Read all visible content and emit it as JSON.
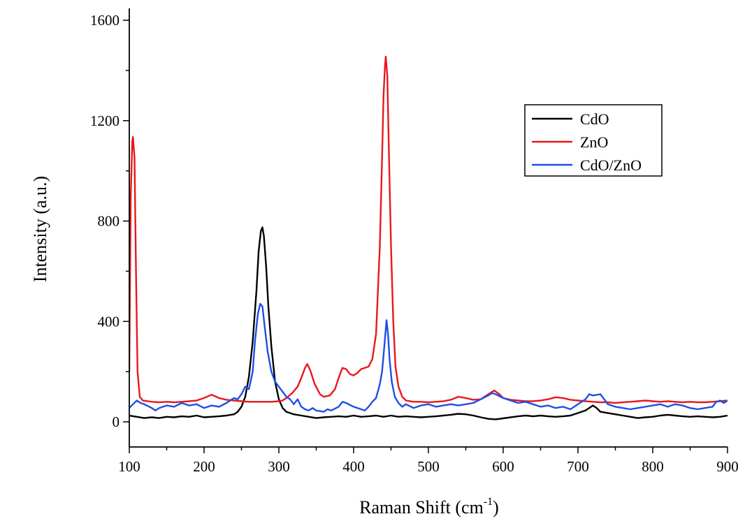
{
  "chart_data": {
    "type": "line",
    "title": "",
    "xlabel": "Raman Shift (cm",
    "xlabel_sup": "-1",
    "xlabel_suffix": ")",
    "ylabel": "Intensity (a.u.)",
    "xlim": [
      100,
      900
    ],
    "ylim": [
      -100,
      1650
    ],
    "xticks": [
      100,
      200,
      300,
      400,
      500,
      600,
      700,
      800,
      900
    ],
    "yticks": [
      0,
      400,
      800,
      1200,
      1600
    ],
    "grid": false,
    "legend_position": "top-right",
    "series": [
      {
        "name": "CdO",
        "color": "#000000",
        "points": [
          [
            100,
            25
          ],
          [
            110,
            20
          ],
          [
            120,
            15
          ],
          [
            130,
            18
          ],
          [
            140,
            15
          ],
          [
            150,
            20
          ],
          [
            160,
            18
          ],
          [
            170,
            22
          ],
          [
            180,
            20
          ],
          [
            190,
            25
          ],
          [
            200,
            18
          ],
          [
            210,
            20
          ],
          [
            220,
            22
          ],
          [
            230,
            25
          ],
          [
            240,
            30
          ],
          [
            245,
            40
          ],
          [
            250,
            60
          ],
          [
            255,
            100
          ],
          [
            260,
            180
          ],
          [
            265,
            320
          ],
          [
            270,
            520
          ],
          [
            273,
            680
          ],
          [
            276,
            760
          ],
          [
            278,
            775
          ],
          [
            280,
            740
          ],
          [
            283,
            620
          ],
          [
            286,
            460
          ],
          [
            290,
            300
          ],
          [
            295,
            160
          ],
          [
            300,
            90
          ],
          [
            305,
            55
          ],
          [
            310,
            40
          ],
          [
            320,
            30
          ],
          [
            330,
            25
          ],
          [
            340,
            20
          ],
          [
            350,
            15
          ],
          [
            360,
            18
          ],
          [
            370,
            20
          ],
          [
            380,
            22
          ],
          [
            390,
            20
          ],
          [
            400,
            25
          ],
          [
            410,
            20
          ],
          [
            420,
            22
          ],
          [
            430,
            25
          ],
          [
            440,
            20
          ],
          [
            450,
            25
          ],
          [
            460,
            20
          ],
          [
            470,
            22
          ],
          [
            480,
            20
          ],
          [
            490,
            18
          ],
          [
            500,
            20
          ],
          [
            510,
            22
          ],
          [
            520,
            25
          ],
          [
            530,
            28
          ],
          [
            540,
            32
          ],
          [
            550,
            30
          ],
          [
            560,
            25
          ],
          [
            570,
            18
          ],
          [
            580,
            12
          ],
          [
            590,
            10
          ],
          [
            600,
            14
          ],
          [
            610,
            18
          ],
          [
            620,
            22
          ],
          [
            630,
            25
          ],
          [
            640,
            22
          ],
          [
            650,
            25
          ],
          [
            660,
            22
          ],
          [
            670,
            20
          ],
          [
            680,
            22
          ],
          [
            690,
            25
          ],
          [
            700,
            35
          ],
          [
            710,
            45
          ],
          [
            715,
            55
          ],
          [
            720,
            65
          ],
          [
            725,
            55
          ],
          [
            730,
            40
          ],
          [
            740,
            35
          ],
          [
            750,
            30
          ],
          [
            760,
            25
          ],
          [
            770,
            20
          ],
          [
            780,
            15
          ],
          [
            790,
            18
          ],
          [
            800,
            20
          ],
          [
            810,
            25
          ],
          [
            820,
            28
          ],
          [
            830,
            25
          ],
          [
            840,
            22
          ],
          [
            850,
            20
          ],
          [
            860,
            22
          ],
          [
            870,
            20
          ],
          [
            880,
            18
          ],
          [
            890,
            20
          ],
          [
            900,
            25
          ]
        ]
      },
      {
        "name": "ZnO",
        "color": "#e8181c",
        "points": [
          [
            100,
            200
          ],
          [
            102,
            900
          ],
          [
            104,
            1120
          ],
          [
            105,
            1135
          ],
          [
            107,
            1050
          ],
          [
            109,
            600
          ],
          [
            111,
            200
          ],
          [
            114,
            100
          ],
          [
            118,
            85
          ],
          [
            130,
            80
          ],
          [
            140,
            78
          ],
          [
            150,
            80
          ],
          [
            160,
            78
          ],
          [
            170,
            80
          ],
          [
            180,
            82
          ],
          [
            190,
            85
          ],
          [
            200,
            95
          ],
          [
            210,
            108
          ],
          [
            220,
            95
          ],
          [
            230,
            88
          ],
          [
            240,
            85
          ],
          [
            250,
            82
          ],
          [
            260,
            80
          ],
          [
            270,
            80
          ],
          [
            280,
            80
          ],
          [
            290,
            80
          ],
          [
            300,
            82
          ],
          [
            305,
            85
          ],
          [
            310,
            95
          ],
          [
            318,
            115
          ],
          [
            325,
            140
          ],
          [
            330,
            175
          ],
          [
            335,
            215
          ],
          [
            338,
            230
          ],
          [
            342,
            205
          ],
          [
            348,
            150
          ],
          [
            355,
            110
          ],
          [
            360,
            100
          ],
          [
            368,
            105
          ],
          [
            375,
            130
          ],
          [
            380,
            175
          ],
          [
            385,
            215
          ],
          [
            390,
            210
          ],
          [
            395,
            190
          ],
          [
            400,
            185
          ],
          [
            405,
            195
          ],
          [
            410,
            210
          ],
          [
            415,
            215
          ],
          [
            420,
            220
          ],
          [
            425,
            250
          ],
          [
            430,
            350
          ],
          [
            435,
            700
          ],
          [
            438,
            1050
          ],
          [
            440,
            1300
          ],
          [
            442,
            1420
          ],
          [
            443,
            1455
          ],
          [
            445,
            1380
          ],
          [
            447,
            1100
          ],
          [
            450,
            700
          ],
          [
            453,
            400
          ],
          [
            456,
            220
          ],
          [
            460,
            140
          ],
          [
            465,
            100
          ],
          [
            470,
            85
          ],
          [
            480,
            80
          ],
          [
            490,
            80
          ],
          [
            500,
            78
          ],
          [
            510,
            80
          ],
          [
            520,
            82
          ],
          [
            530,
            88
          ],
          [
            540,
            100
          ],
          [
            550,
            95
          ],
          [
            560,
            88
          ],
          [
            570,
            90
          ],
          [
            580,
            110
          ],
          [
            588,
            125
          ],
          [
            595,
            110
          ],
          [
            600,
            95
          ],
          [
            610,
            88
          ],
          [
            620,
            85
          ],
          [
            630,
            82
          ],
          [
            640,
            82
          ],
          [
            650,
            85
          ],
          [
            660,
            90
          ],
          [
            670,
            98
          ],
          [
            680,
            95
          ],
          [
            690,
            88
          ],
          [
            700,
            85
          ],
          [
            710,
            82
          ],
          [
            720,
            80
          ],
          [
            730,
            78
          ],
          [
            740,
            78
          ],
          [
            750,
            75
          ],
          [
            760,
            78
          ],
          [
            770,
            80
          ],
          [
            780,
            82
          ],
          [
            790,
            85
          ],
          [
            800,
            82
          ],
          [
            810,
            80
          ],
          [
            820,
            82
          ],
          [
            830,
            80
          ],
          [
            840,
            78
          ],
          [
            850,
            80
          ],
          [
            860,
            78
          ],
          [
            870,
            78
          ],
          [
            880,
            80
          ],
          [
            890,
            82
          ],
          [
            900,
            85
          ]
        ]
      },
      {
        "name": "CdO/ZnO",
        "color": "#1f4ee6",
        "points": [
          [
            100,
            55
          ],
          [
            105,
            70
          ],
          [
            110,
            85
          ],
          [
            115,
            75
          ],
          [
            120,
            70
          ],
          [
            130,
            55
          ],
          [
            135,
            45
          ],
          [
            140,
            55
          ],
          [
            150,
            65
          ],
          [
            160,
            60
          ],
          [
            170,
            75
          ],
          [
            180,
            65
          ],
          [
            190,
            70
          ],
          [
            200,
            55
          ],
          [
            210,
            65
          ],
          [
            220,
            60
          ],
          [
            230,
            75
          ],
          [
            240,
            95
          ],
          [
            245,
            90
          ],
          [
            250,
            110
          ],
          [
            255,
            140
          ],
          [
            260,
            130
          ],
          [
            265,
            200
          ],
          [
            268,
            320
          ],
          [
            272,
            430
          ],
          [
            275,
            470
          ],
          [
            278,
            460
          ],
          [
            281,
            380
          ],
          [
            285,
            280
          ],
          [
            290,
            200
          ],
          [
            295,
            160
          ],
          [
            300,
            140
          ],
          [
            305,
            120
          ],
          [
            310,
            100
          ],
          [
            315,
            90
          ],
          [
            320,
            70
          ],
          [
            325,
            90
          ],
          [
            330,
            60
          ],
          [
            335,
            50
          ],
          [
            340,
            45
          ],
          [
            345,
            55
          ],
          [
            350,
            45
          ],
          [
            360,
            40
          ],
          [
            365,
            50
          ],
          [
            370,
            45
          ],
          [
            380,
            60
          ],
          [
            385,
            80
          ],
          [
            390,
            75
          ],
          [
            400,
            60
          ],
          [
            410,
            50
          ],
          [
            415,
            45
          ],
          [
            420,
            60
          ],
          [
            425,
            80
          ],
          [
            430,
            95
          ],
          [
            435,
            150
          ],
          [
            438,
            200
          ],
          [
            441,
            300
          ],
          [
            444,
            405
          ],
          [
            446,
            350
          ],
          [
            448,
            250
          ],
          [
            451,
            160
          ],
          [
            455,
            100
          ],
          [
            460,
            75
          ],
          [
            465,
            60
          ],
          [
            470,
            70
          ],
          [
            480,
            55
          ],
          [
            490,
            65
          ],
          [
            500,
            70
          ],
          [
            510,
            60
          ],
          [
            520,
            65
          ],
          [
            530,
            70
          ],
          [
            540,
            65
          ],
          [
            550,
            70
          ],
          [
            560,
            75
          ],
          [
            570,
            90
          ],
          [
            580,
            105
          ],
          [
            585,
            115
          ],
          [
            590,
            110
          ],
          [
            600,
            95
          ],
          [
            610,
            85
          ],
          [
            620,
            75
          ],
          [
            630,
            80
          ],
          [
            640,
            70
          ],
          [
            650,
            60
          ],
          [
            660,
            65
          ],
          [
            670,
            55
          ],
          [
            680,
            60
          ],
          [
            690,
            50
          ],
          [
            700,
            70
          ],
          [
            710,
            90
          ],
          [
            715,
            110
          ],
          [
            720,
            105
          ],
          [
            730,
            110
          ],
          [
            740,
            70
          ],
          [
            750,
            60
          ],
          [
            760,
            55
          ],
          [
            770,
            50
          ],
          [
            780,
            55
          ],
          [
            790,
            60
          ],
          [
            800,
            65
          ],
          [
            810,
            70
          ],
          [
            820,
            60
          ],
          [
            830,
            70
          ],
          [
            840,
            65
          ],
          [
            850,
            55
          ],
          [
            860,
            50
          ],
          [
            870,
            55
          ],
          [
            880,
            60
          ],
          [
            885,
            80
          ],
          [
            890,
            85
          ],
          [
            895,
            75
          ],
          [
            900,
            85
          ]
        ]
      }
    ]
  }
}
